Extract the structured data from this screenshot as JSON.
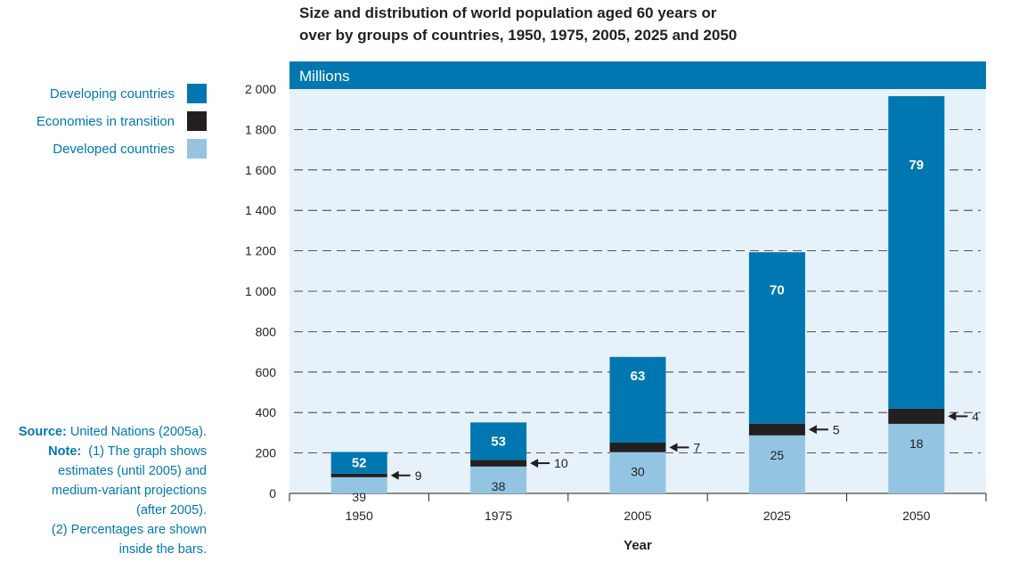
{
  "title_lines": [
    "Size and distribution of world population aged 60 years or",
    "over by groups of countries, 1950, 1975, 2005, 2025 and 2050"
  ],
  "legend": [
    {
      "label": "Developing countries",
      "color": "#0077b0"
    },
    {
      "label": "Economies in transition",
      "color": "#231f20"
    },
    {
      "label": "Developed countries",
      "color": "#93c5e3"
    }
  ],
  "notes": {
    "source_label": "Source:",
    "source_text": "United Nations (2005a).",
    "note_label": "Note:",
    "note_lines": [
      "(1) The graph shows",
      "estimates (until 2005) and",
      "medium-variant projections",
      "(after 2005).",
      "(2) Percentages are shown",
      "inside the bars."
    ]
  },
  "colors": {
    "header_bar": "#0077b0",
    "plot_bg": "#e6f1f9",
    "axis_text": "#231f20"
  },
  "chart_data": {
    "type": "bar",
    "stacked": true,
    "header": "Millions",
    "xlabel": "Year",
    "ylabel": "",
    "ylim": [
      0,
      2000
    ],
    "yticks": [
      0,
      200,
      400,
      600,
      800,
      1000,
      1200,
      1400,
      1600,
      1800,
      2000
    ],
    "ytick_labels": [
      "0",
      "200",
      "400",
      "600",
      "800",
      "1 000",
      "1 200",
      "1 400",
      "1 600",
      "1 800",
      "2 000"
    ],
    "grid": "dashed horizontal",
    "legend_position": "left",
    "categories": [
      "1950",
      "1975",
      "2005",
      "2025",
      "2050"
    ],
    "series": [
      {
        "name": "Developed countries",
        "color": "#93c5e3",
        "values": [
          80,
          133,
          204,
          287,
          344
        ],
        "percent_labels": [
          "39",
          "38",
          "30",
          "25",
          "18"
        ]
      },
      {
        "name": "Economies in transition",
        "color": "#231f20",
        "values": [
          18,
          33,
          47,
          58,
          75
        ],
        "percent_labels": [
          "9",
          "10",
          "7",
          "5",
          "4"
        ]
      },
      {
        "name": "Developing countries",
        "color": "#0077b0",
        "values": [
          107,
          185,
          424,
          848,
          1546
        ],
        "percent_labels": [
          "52",
          "53",
          "63",
          "70",
          "79"
        ]
      }
    ]
  }
}
